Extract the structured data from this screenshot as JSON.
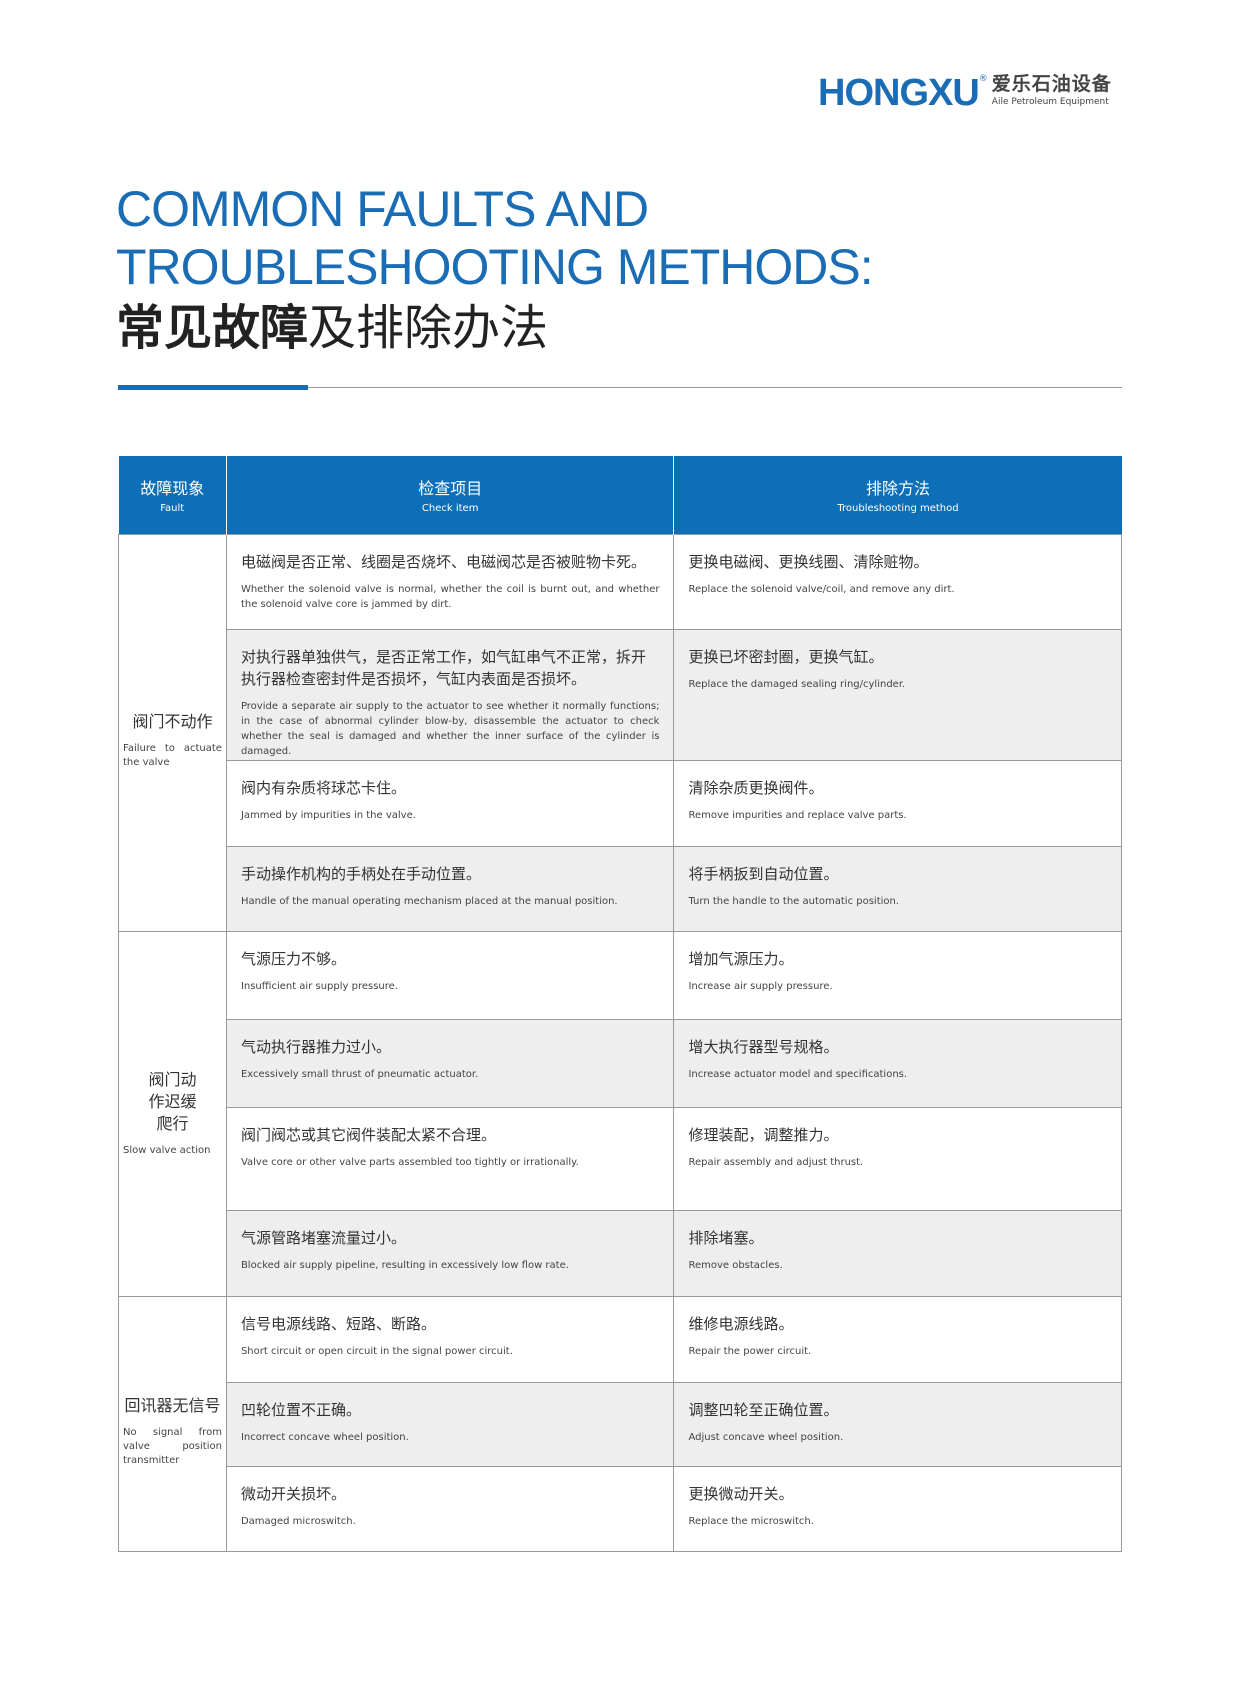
{
  "logo": {
    "brand": "HONGXU",
    "reg": "®",
    "cn": "爱乐石油设备",
    "en": "Aile Petroleum Equipment"
  },
  "title": {
    "line1": "COMMON FAULTS AND",
    "line2": "TROUBLESHOOTING METHODS:",
    "cn_bold": "常见故障",
    "cn_rest": "及排除办法"
  },
  "table": {
    "headers": [
      {
        "cn": "故障现象",
        "en": "Fault"
      },
      {
        "cn": "检查项目",
        "en": "Check item"
      },
      {
        "cn": "排除方法",
        "en": "Troubleshooting method"
      }
    ],
    "groups": [
      {
        "fault_cn": "阀门不动作",
        "fault_en": "Failure to actuate the valve",
        "rows": [
          {
            "check_cn": "电磁阀是否正常、线圈是否烧坏、电磁阀芯是否被赃物卡死。",
            "check_en": "Whether the solenoid valve is normal, whether the coil is burnt out, and whether the solenoid valve core is jammed by dirt.",
            "fix_cn": "更换电磁阀、更换线圈、清除赃物。",
            "fix_en": "Replace the solenoid valve/coil, and remove any dirt."
          },
          {
            "check_cn": "对执行器单独供气，是否正常工作，如气缸串气不正常，拆开执行器检查密封件是否损坏，气缸内表面是否损坏。",
            "check_en": "Provide a separate air supply to the actuator to see whether it normally functions; in the case of abnormal cylinder blow-by, disassemble the actuator to check whether the seal is damaged and whether the inner surface of the cylinder is damaged.",
            "fix_cn": "更换已坏密封圈，更换气缸。",
            "fix_en": "Replace the damaged sealing ring/cylinder."
          },
          {
            "check_cn": "阀内有杂质将球芯卡住。",
            "check_en": "Jammed by impurities in the valve.",
            "fix_cn": "清除杂质更换阀件。",
            "fix_en": "Remove impurities and replace valve parts."
          },
          {
            "check_cn": "手动操作机构的手柄处在手动位置。",
            "check_en": "Handle of the manual operating mechanism placed at the manual position.",
            "fix_cn": "将手柄扳到自动位置。",
            "fix_en": "Turn the handle to the automatic position."
          }
        ]
      },
      {
        "fault_cn": "阀门动作迟缓爬行",
        "fault_en": "Slow valve action",
        "rows": [
          {
            "check_cn": "气源压力不够。",
            "check_en": "Insufficient air supply pressure.",
            "fix_cn": "增加气源压力。",
            "fix_en": "Increase air supply pressure."
          },
          {
            "check_cn": "气动执行器推力过小。",
            "check_en": "Excessively small thrust of pneumatic actuator.",
            "fix_cn": "增大执行器型号规格。",
            "fix_en": "Increase actuator model and specifications."
          },
          {
            "check_cn": "阀门阀芯或其它阀件装配太紧不合理。",
            "check_en": "Valve core or other valve parts assembled too tightly or irrationally.",
            "fix_cn": "修理装配，调整推力。",
            "fix_en": "Repair assembly and adjust thrust."
          },
          {
            "check_cn": "气源管路堵塞流量过小。",
            "check_en": "Blocked air supply pipeline, resulting in excessively low flow rate.",
            "fix_cn": "排除堵塞。",
            "fix_en": "Remove obstacles."
          }
        ]
      },
      {
        "fault_cn": "回讯器无信号",
        "fault_en": "No signal from valve position transmitter",
        "rows": [
          {
            "check_cn": "信号电源线路、短路、断路。",
            "check_en": "Short circuit or open circuit in the signal power circuit.",
            "fix_cn": "维修电源线路。",
            "fix_en": "Repair the power circuit."
          },
          {
            "check_cn": "凹轮位置不正确。",
            "check_en": "Incorrect concave wheel position.",
            "fix_cn": "调整凹轮至正确位置。",
            "fix_en": "Adjust concave wheel position."
          },
          {
            "check_cn": "微动开关损坏。",
            "check_en": "Damaged microswitch.",
            "fix_cn": "更换微动开关。",
            "fix_en": "Replace the microswitch."
          }
        ]
      }
    ]
  },
  "colors": {
    "accent": "#0d6fb8",
    "row_alt": "#eeeeee"
  }
}
